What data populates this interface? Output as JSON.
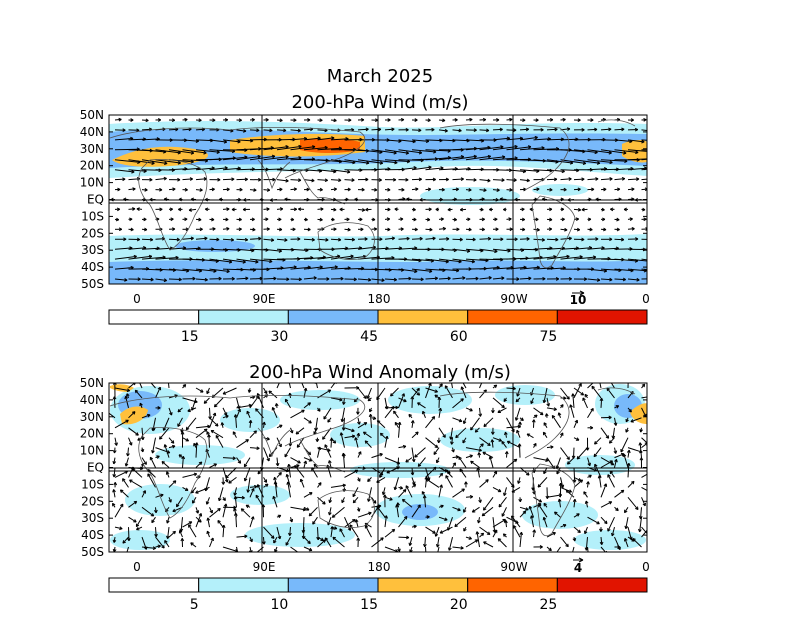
{
  "header": {
    "date_title": "March 2025"
  },
  "panels": [
    {
      "title": "200-hPa Wind (m/s)",
      "lat_labels": [
        "50N",
        "40N",
        "30N",
        "20N",
        "10N",
        "EQ",
        "10S",
        "20S",
        "30S",
        "40S",
        "50S"
      ],
      "lon_labels": [
        "0",
        "90E",
        "180",
        "90W",
        "0"
      ],
      "reference_vector": "10",
      "colorbar": {
        "labels": [
          "15",
          "30",
          "45",
          "60",
          "75"
        ],
        "colors": [
          "#ffffff",
          "#b4f0fa",
          "#78b9fa",
          "#ffc03c",
          "#ff6400",
          "#e11400"
        ]
      }
    },
    {
      "title": "200-hPa Wind Anomaly (m/s)",
      "lat_labels": [
        "50N",
        "40N",
        "30N",
        "20N",
        "10N",
        "EQ",
        "10S",
        "20S",
        "30S",
        "40S",
        "50S"
      ],
      "lon_labels": [
        "0",
        "90E",
        "180",
        "90W",
        "0"
      ],
      "reference_vector": "4",
      "colorbar": {
        "labels": [
          "5",
          "10",
          "15",
          "20",
          "25"
        ],
        "colors": [
          "#ffffff",
          "#b4f0fa",
          "#78b9fa",
          "#ffc03c",
          "#ff6400",
          "#e11400"
        ]
      }
    }
  ]
}
